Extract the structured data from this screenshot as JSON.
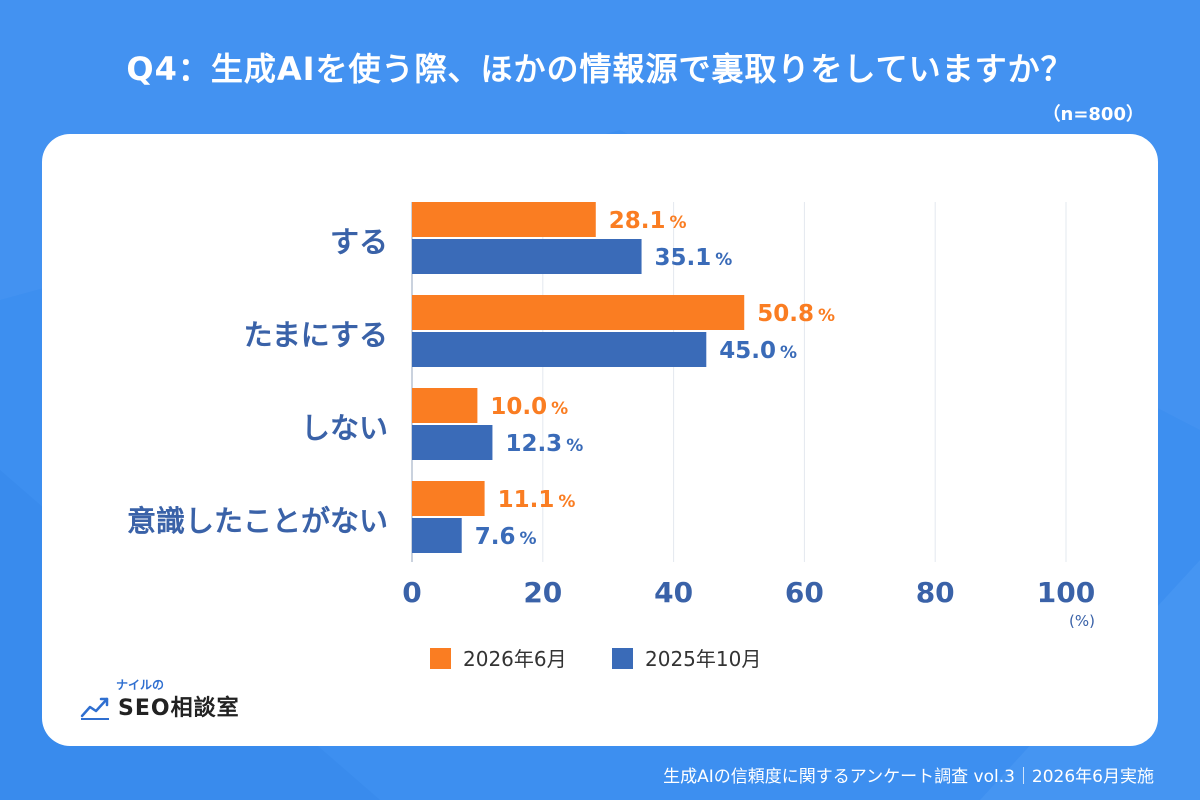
{
  "page": {
    "title": "Q4：生成AIを使う際、ほかの情報源で裏取りをしていますか？",
    "sample_size": "（n=800）",
    "footer": "生成AIの信頼度に関するアンケート調査 vol.3｜2026年6月実施"
  },
  "logo": {
    "small_text": "ナイルの",
    "main_text": "SEO相談室",
    "icon": "trend-chart-icon"
  },
  "colors": {
    "background": "#3d8ff0",
    "series_2026": "#fa7d22",
    "series_2025": "#3a6bb8",
    "label_text": "#3a62a8",
    "grid": "#e3e8ef"
  },
  "chart_data": {
    "type": "bar",
    "orientation": "horizontal",
    "categories": [
      "する",
      "たまにする",
      "しない",
      "意識したことがない"
    ],
    "series": [
      {
        "name": "2026年6月",
        "values": [
          28.1,
          50.8,
          10.0,
          11.1
        ]
      },
      {
        "name": "2025年10月",
        "values": [
          35.1,
          45.0,
          12.3,
          7.6
        ]
      }
    ],
    "value_labels": [
      [
        "28.1",
        "50.8",
        "10.0",
        "11.1"
      ],
      [
        "35.1",
        "45.0",
        "12.3",
        "7.6"
      ]
    ],
    "value_unit": "%",
    "xlim": [
      0,
      100
    ],
    "xticks": [
      0,
      20,
      40,
      60,
      80,
      100
    ],
    "x_unit_label": "(%)",
    "grid": true,
    "legend_position": "bottom"
  }
}
